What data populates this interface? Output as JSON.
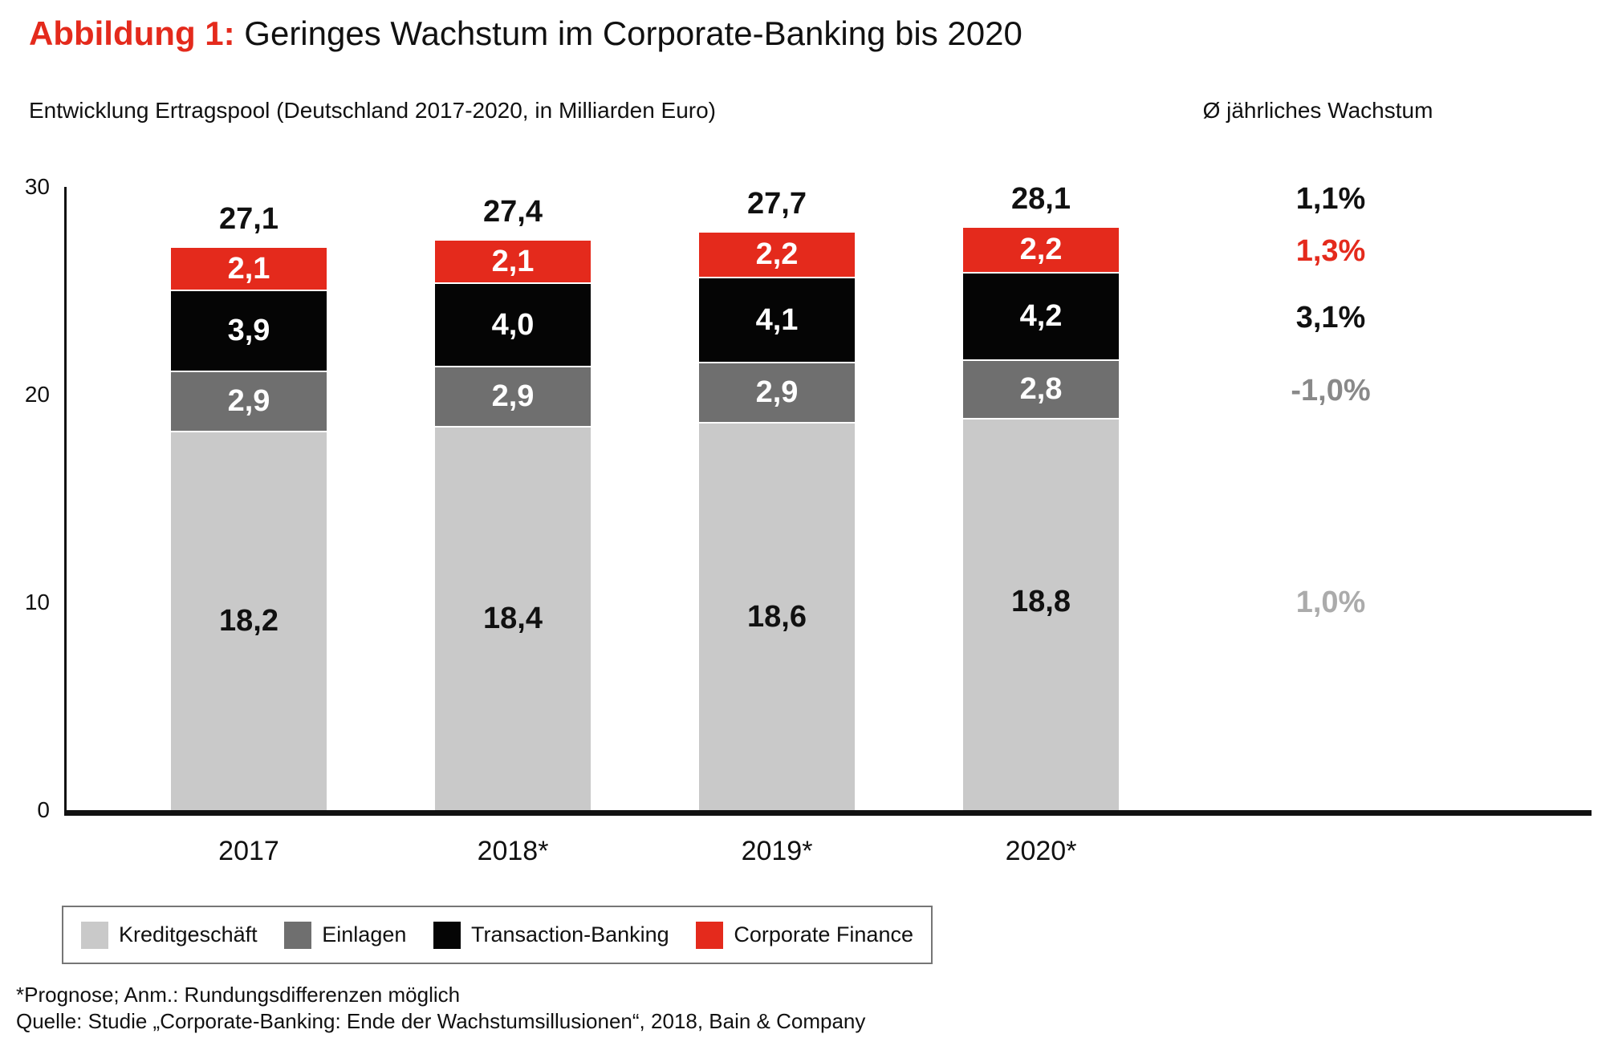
{
  "title": {
    "prefix": "Abbildung 1:",
    "main": "Geringes Wachstum im Corporate-Banking bis 2020"
  },
  "subtitle": "Entwicklung Ertragspool (Deutschland 2017-2020, in Milliarden Euro)",
  "growth_header": "Ø jährliches Wachstum",
  "chart_data": {
    "type": "bar",
    "stacked": true,
    "categories": [
      "2017",
      "2018*",
      "2019*",
      "2020*"
    ],
    "series": [
      {
        "name": "Kreditgeschäft",
        "color": "#c9c9c9",
        "values": [
          18.2,
          18.4,
          18.6,
          18.8
        ],
        "value_labels": [
          "18,2",
          "18,4",
          "18,6",
          "18,8"
        ],
        "label_color": "#111111",
        "growth_label": "1,0%",
        "growth_color": "#ababab"
      },
      {
        "name": "Einlagen",
        "color": "#6f6f6f",
        "values": [
          2.9,
          2.9,
          2.9,
          2.8
        ],
        "value_labels": [
          "2,9",
          "2,9",
          "2,9",
          "2,8"
        ],
        "label_color": "#ffffff",
        "growth_label": "-1,0%",
        "growth_color": "#898989"
      },
      {
        "name": "Transaction-Banking",
        "color": "#050505",
        "values": [
          3.9,
          4.0,
          4.1,
          4.2
        ],
        "value_labels": [
          "3,9",
          "4,0",
          "4,1",
          "4,2"
        ],
        "label_color": "#ffffff",
        "growth_label": "3,1%",
        "growth_color": "#111111"
      },
      {
        "name": "Corporate Finance",
        "color": "#e42a1c",
        "values": [
          2.1,
          2.1,
          2.2,
          2.2
        ],
        "value_labels": [
          "2,1",
          "2,1",
          "2,2",
          "2,2"
        ],
        "label_color": "#ffffff",
        "growth_label": "1,3%",
        "growth_color": "#e42a1c"
      }
    ],
    "totals": [
      27.1,
      27.4,
      27.7,
      28.1
    ],
    "total_labels": [
      "27,1",
      "27,4",
      "27,7",
      "28,1"
    ],
    "total_growth_label": "1,1%",
    "total_growth_color": "#111111",
    "y_axis": {
      "min": 0,
      "max": 30,
      "ticks": [
        0,
        10,
        20,
        30
      ],
      "tick_labels": [
        "0",
        "10",
        "20",
        "30"
      ]
    },
    "legend_position": "bottom",
    "grid": false
  },
  "footnotes": [
    "*Prognose; Anm.: Rundungsdifferenzen möglich",
    "Quelle: Studie „Corporate-Banking: Ende der Wachstumsillusionen“, 2018, Bain & Company"
  ],
  "colors": {
    "accent_red": "#e42a1c",
    "text": "#111111",
    "axis": "#111111"
  }
}
